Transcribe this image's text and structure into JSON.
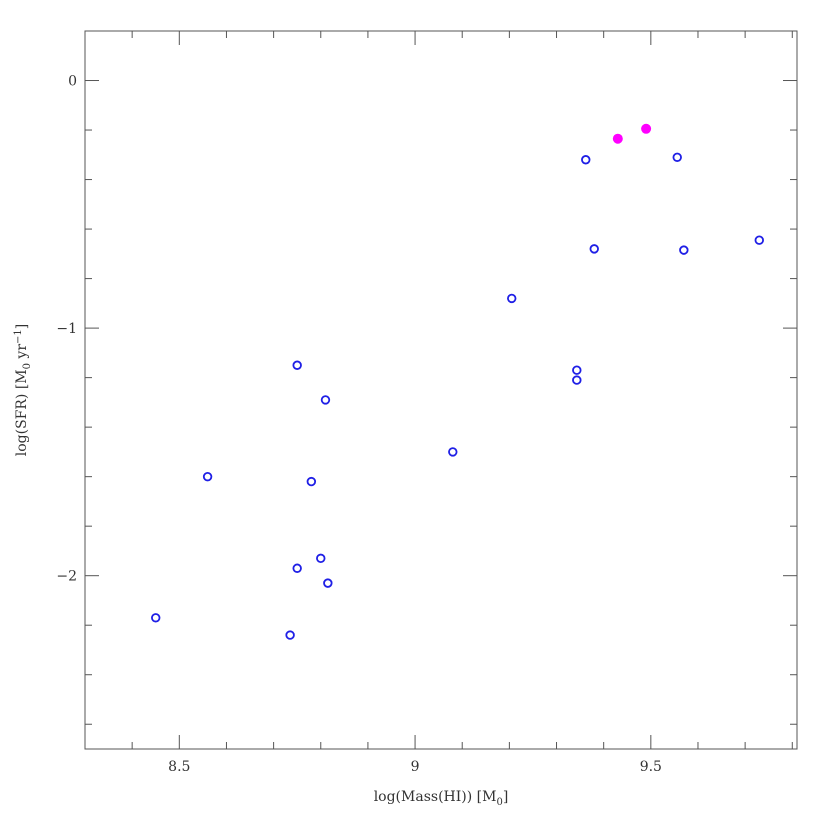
{
  "chart_data": {
    "type": "scatter",
    "xlabel": "log(Mass(HI)) [M",
    "xlabel_sub": "0",
    "xlabel_end": "]",
    "ylabel": "log(SFR) [M",
    "ylabel_sub": "0",
    "ylabel_mid": " yr",
    "ylabel_sup": "−1",
    "ylabel_end": "]",
    "xlim": [
      8.3,
      9.81
    ],
    "ylim": [
      -2.7,
      0.2
    ],
    "x_ticks": [
      8.5,
      9,
      9.5
    ],
    "x_tick_labels": [
      "8.5",
      "9",
      "9.5"
    ],
    "x_minor_step": 0.1,
    "y_ticks": [
      0,
      -1,
      -2
    ],
    "y_tick_labels": [
      "0",
      "−1",
      "−2"
    ],
    "y_minor_step": 0.2,
    "grid": false,
    "legend": "none",
    "series": [
      {
        "marker": "open-circle",
        "color": "#1f1fe6",
        "points": [
          {
            "x": 8.45,
            "y": -2.17
          },
          {
            "x": 8.56,
            "y": -1.6
          },
          {
            "x": 8.735,
            "y": -2.24
          },
          {
            "x": 8.75,
            "y": -1.15
          },
          {
            "x": 8.75,
            "y": -1.97
          },
          {
            "x": 8.78,
            "y": -1.62
          },
          {
            "x": 8.8,
            "y": -1.93
          },
          {
            "x": 8.81,
            "y": -1.29
          },
          {
            "x": 8.815,
            "y": -2.03
          },
          {
            "x": 9.08,
            "y": -1.5
          },
          {
            "x": 9.205,
            "y": -0.88
          },
          {
            "x": 9.343,
            "y": -1.17
          },
          {
            "x": 9.343,
            "y": -1.21
          },
          {
            "x": 9.362,
            "y": -0.32
          },
          {
            "x": 9.38,
            "y": -0.68
          },
          {
            "x": 9.556,
            "y": -0.31
          },
          {
            "x": 9.57,
            "y": -0.685
          },
          {
            "x": 9.73,
            "y": -0.645
          }
        ]
      },
      {
        "marker": "filled-circle",
        "color": "#ff00ff",
        "points": [
          {
            "x": 9.43,
            "y": -0.235
          },
          {
            "x": 9.49,
            "y": -0.195
          }
        ]
      }
    ]
  }
}
